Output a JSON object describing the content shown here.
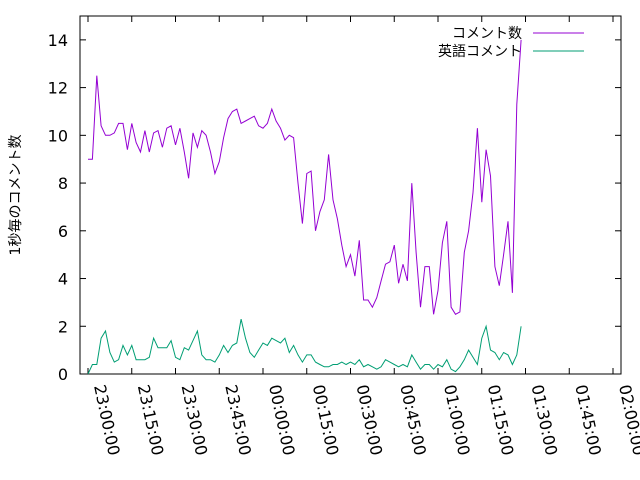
{
  "chart_data": {
    "type": "line",
    "title": "",
    "xlabel": "",
    "ylabel": "1秒毎のコメント数",
    "xlim": [
      "23:00:00",
      "02:00:00"
    ],
    "ylim": [
      0,
      15
    ],
    "yticks": [
      0,
      2,
      4,
      6,
      8,
      10,
      12,
      14
    ],
    "xticks": [
      "23:00:00",
      "23:15:00",
      "23:30:00",
      "23:45:00",
      "00:00:00",
      "00:15:00",
      "00:30:00",
      "00:45:00",
      "01:00:00",
      "01:15:00",
      "01:30:00",
      "01:45:00",
      "02:00:00"
    ],
    "grid": false,
    "legend_position": "top-right",
    "x_interval_minutes": 1.5,
    "x_start": "23:00:00",
    "series": [
      {
        "name": "コメント数",
        "color": "#9400d3",
        "values": [
          9.0,
          9.0,
          12.5,
          10.4,
          10.0,
          10.0,
          10.1,
          10.5,
          10.5,
          9.4,
          10.5,
          9.7,
          9.3,
          10.2,
          9.3,
          10.1,
          10.2,
          9.5,
          10.3,
          10.4,
          9.6,
          10.3,
          9.3,
          8.2,
          10.1,
          9.5,
          10.2,
          10.0,
          9.3,
          8.4,
          8.9,
          9.9,
          10.7,
          11.0,
          11.1,
          10.5,
          10.6,
          10.7,
          10.8,
          10.4,
          10.3,
          10.5,
          11.1,
          10.6,
          10.3,
          9.8,
          10.0,
          9.9,
          8.0,
          6.3,
          8.4,
          8.5,
          6.0,
          6.8,
          7.3,
          9.2,
          7.3,
          6.5,
          5.4,
          4.5,
          5.0,
          4.1,
          5.6,
          3.1,
          3.1,
          2.8,
          3.2,
          3.9,
          4.6,
          4.7,
          5.4,
          3.8,
          4.6,
          3.9,
          8.0,
          5.1,
          2.8,
          4.5,
          4.5,
          2.5,
          3.5,
          5.5,
          6.4,
          2.8,
          2.5,
          2.6,
          5.1,
          6.0,
          7.6,
          10.3,
          7.2,
          9.4,
          8.3,
          4.5,
          3.7,
          5.0,
          6.4,
          3.4,
          11.3,
          14.0
        ]
      },
      {
        "name": "英語コメント",
        "color": "#009e73",
        "values": [
          0.0,
          0.4,
          0.4,
          1.5,
          1.8,
          0.9,
          0.5,
          0.6,
          1.2,
          0.8,
          1.2,
          0.6,
          0.6,
          0.6,
          0.7,
          1.5,
          1.1,
          1.1,
          1.1,
          1.4,
          0.7,
          0.6,
          1.1,
          1.0,
          1.4,
          1.8,
          0.8,
          0.6,
          0.6,
          0.5,
          0.8,
          1.2,
          0.9,
          1.2,
          1.3,
          2.3,
          1.5,
          0.9,
          0.7,
          1.0,
          1.3,
          1.2,
          1.5,
          1.4,
          1.3,
          1.5,
          0.9,
          1.2,
          0.8,
          0.5,
          0.8,
          0.8,
          0.5,
          0.4,
          0.3,
          0.3,
          0.4,
          0.4,
          0.5,
          0.4,
          0.5,
          0.4,
          0.6,
          0.3,
          0.4,
          0.3,
          0.2,
          0.3,
          0.6,
          0.5,
          0.4,
          0.3,
          0.4,
          0.3,
          0.8,
          0.5,
          0.2,
          0.4,
          0.4,
          0.2,
          0.4,
          0.3,
          0.6,
          0.2,
          0.1,
          0.3,
          0.6,
          1.0,
          0.7,
          0.4,
          1.5,
          2.0,
          1.0,
          0.9,
          0.6,
          0.9,
          0.8,
          0.4,
          0.8,
          2.0
        ]
      }
    ]
  }
}
